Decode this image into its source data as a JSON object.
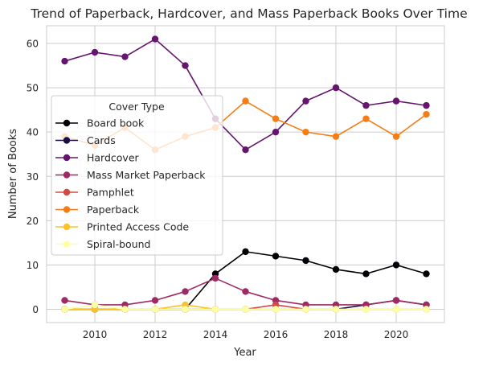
{
  "chart_data": {
    "type": "line",
    "title": "Trend of Paperback, Hardcover, and Mass Paperback Books Over Time",
    "xlabel": "Year",
    "ylabel": "Number of Books",
    "x": [
      2009,
      2010,
      2011,
      2012,
      2013,
      2014,
      2015,
      2016,
      2017,
      2018,
      2019,
      2020,
      2021
    ],
    "xlim": [
      2008.4,
      2021.6
    ],
    "ylim": [
      -3,
      64
    ],
    "xticks": [
      2010,
      2012,
      2014,
      2016,
      2018,
      2020
    ],
    "yticks": [
      0,
      10,
      20,
      30,
      40,
      50,
      60
    ],
    "grid": true,
    "legend": {
      "title": "Cover Type",
      "placement": "center-left"
    },
    "series": [
      {
        "name": "Board book",
        "color": "#000004",
        "values": [
          0,
          0,
          0,
          0,
          0,
          8,
          13,
          12,
          11,
          9,
          8,
          10,
          8
        ]
      },
      {
        "name": "Cards",
        "color": "#1b0c41",
        "values": [
          0,
          0,
          0,
          0,
          0,
          0,
          0,
          0,
          0,
          0,
          1,
          2,
          1
        ]
      },
      {
        "name": "Hardcover",
        "color": "#65156e",
        "values": [
          56,
          58,
          57,
          61,
          55,
          43,
          36,
          40,
          47,
          50,
          46,
          47,
          46
        ]
      },
      {
        "name": "Mass Market Paperback",
        "color": "#9f2a63",
        "values": [
          2,
          1,
          1,
          2,
          4,
          7,
          4,
          2,
          1,
          1,
          1,
          2,
          1
        ]
      },
      {
        "name": "Pamphlet",
        "color": "#d44842",
        "values": [
          0,
          0,
          0,
          0,
          0,
          0,
          0,
          1,
          0,
          0,
          0,
          0,
          0
        ]
      },
      {
        "name": "Paperback",
        "color": "#f57d15",
        "values": [
          39,
          37,
          41,
          36,
          39,
          41,
          47,
          43,
          40,
          39,
          43,
          39,
          44
        ]
      },
      {
        "name": "Printed Access Code",
        "color": "#fac228",
        "values": [
          0,
          0,
          0,
          0,
          1,
          0,
          0,
          0,
          0,
          0,
          0,
          0,
          0
        ]
      },
      {
        "name": "Spiral-bound",
        "color": "#fcffa4",
        "values": [
          0,
          1,
          0,
          0,
          0,
          0,
          0,
          0,
          0,
          0,
          0,
          0,
          0
        ]
      }
    ]
  }
}
